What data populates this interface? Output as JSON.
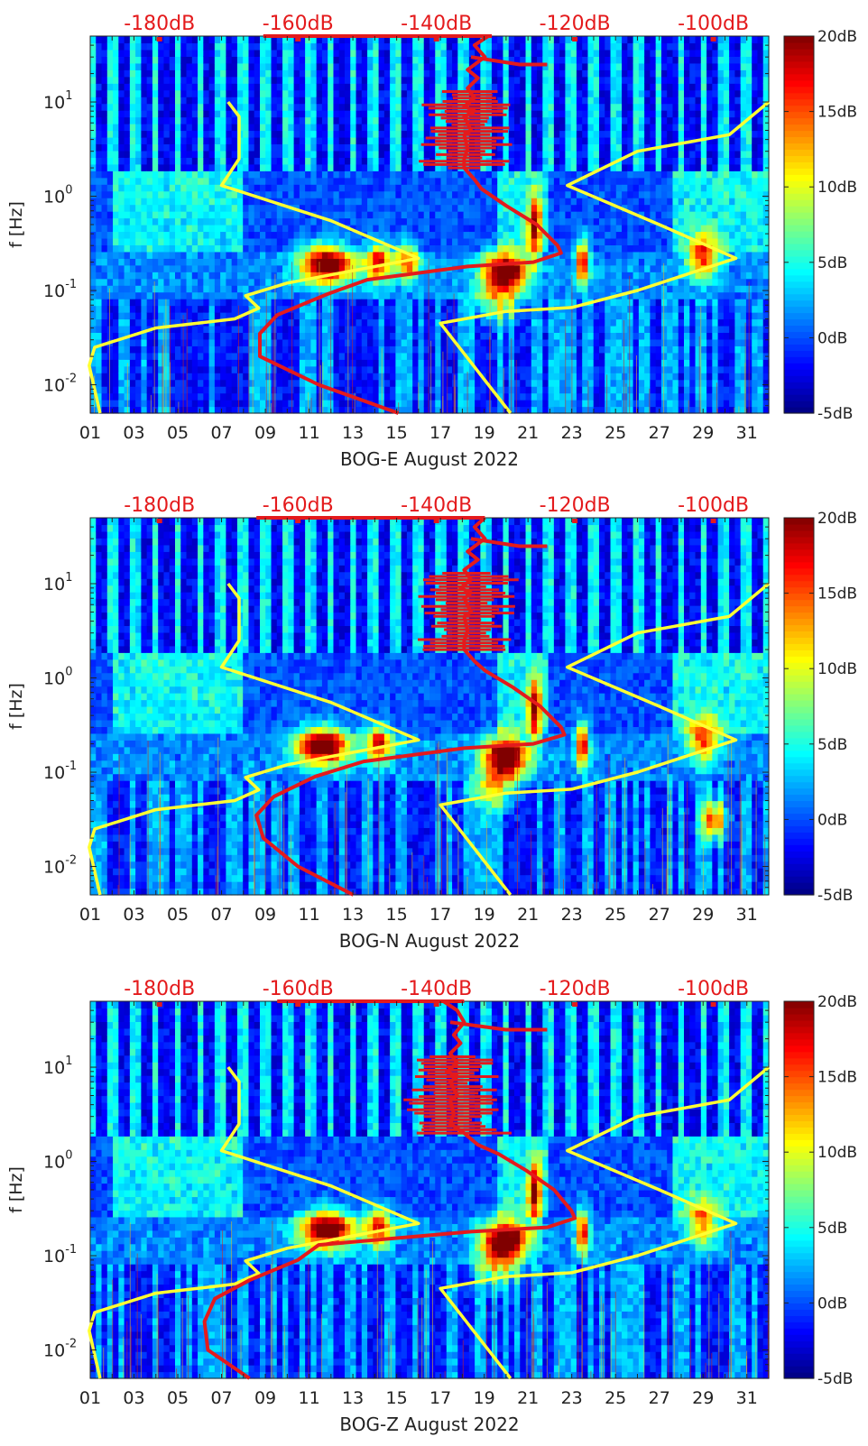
{
  "chart_data": [
    {
      "type": "heatmap",
      "title": "",
      "xlabel": "BOG-E August 2022",
      "ylabel": "f [Hz]",
      "x_tick_labels": [
        "01",
        "03",
        "05",
        "07",
        "09",
        "11",
        "13",
        "15",
        "17",
        "19",
        "21",
        "23",
        "25",
        "27",
        "29",
        "31"
      ],
      "xlim": [
        1,
        32
      ],
      "ylim": [
        0.005,
        50
      ],
      "y_scale": "log",
      "y_tick_labels": [
        {
          "value": 0.01,
          "base": "10",
          "exp": "-2"
        },
        {
          "value": 0.1,
          "base": "10",
          "exp": "-1"
        },
        {
          "value": 1,
          "base": "10",
          "exp": "0"
        },
        {
          "value": 10,
          "base": "10",
          "exp": "1"
        }
      ],
      "colorbar": {
        "range": [
          -5,
          20
        ],
        "unit": "dB",
        "ticks": [
          "-5dB",
          "0dB",
          "5dB",
          "10dB",
          "15dB",
          "20dB"
        ]
      },
      "top_axis": {
        "color": "#e41a1c",
        "range_db": [
          -190,
          -92
        ],
        "tick_values": [
          -180,
          -160,
          -140,
          -120,
          -100
        ],
        "tick_labels": [
          "-180dB",
          "-160dB",
          "-140dB",
          "-120dB",
          "-100dB"
        ]
      },
      "heatmap_features": [
        {
          "x": 11.8,
          "f": 0.19,
          "amp": 22,
          "wx": 1.2,
          "wf": 0.05
        },
        {
          "x": 14.2,
          "f": 0.2,
          "amp": 16,
          "wx": 0.6,
          "wf": 0.05
        },
        {
          "x": 15.5,
          "f": 0.2,
          "amp": 14,
          "wx": 0.5,
          "wf": 0.05
        },
        {
          "x": 20.0,
          "f": 0.16,
          "amp": 22,
          "wx": 1.0,
          "wf": 0.05
        },
        {
          "x": 21.3,
          "f": 0.48,
          "amp": 16,
          "wx": 0.3,
          "wf": 0.08
        },
        {
          "x": 23.5,
          "f": 0.2,
          "amp": 17,
          "wx": 0.3,
          "wf": 0.06
        },
        {
          "x": 29.0,
          "f": 0.22,
          "amp": 14,
          "wx": 0.7,
          "wf": 0.06
        },
        {
          "x": 19.6,
          "f": 0.08,
          "amp": 9,
          "wx": 1.0,
          "wf": 0.06
        }
      ],
      "series": [
        {
          "name": "yellow-noise-model-left",
          "color": "#ffff33",
          "axis": "bottom",
          "x": [
            7.3,
            7.8,
            7.8,
            7.0,
            12.0,
            16.0,
            10.0,
            8.1,
            8.7,
            7.6,
            4.0,
            1.2,
            0.95,
            1.45
          ],
          "f": [
            10,
            7,
            2.5,
            1.3,
            0.55,
            0.22,
            0.12,
            0.088,
            0.065,
            0.05,
            0.04,
            0.025,
            0.016,
            0.005
          ]
        },
        {
          "name": "yellow-noise-model-right",
          "color": "#ffff33",
          "axis": "bottom",
          "x": [
            32.0,
            30.2,
            26.0,
            22.8,
            27.0,
            30.5,
            26.0,
            23.0,
            20.0,
            17.0,
            20.2
          ],
          "f": [
            10,
            4.5,
            3.0,
            1.3,
            0.5,
            0.22,
            0.1,
            0.066,
            0.06,
            0.045,
            0.005
          ]
        },
        {
          "name": "red-psd-curve",
          "color": "#e41a1c",
          "axis": "top",
          "db": [
            -132.5,
            -134.5,
            -133.0,
            -135.5,
            -134.0,
            -135.5,
            -134.5,
            -136.0,
            -134.5,
            -136.0,
            -135.0,
            -136.0,
            -135.5,
            -136.0,
            -136.0,
            -134.5,
            -133.5,
            -130.0,
            -125.5,
            -122.5,
            -122.0,
            -126.0,
            -135.5,
            -150.0,
            -156.0,
            -163.0,
            -165.5,
            -165.5,
            -157.0,
            -145.5
          ],
          "f": [
            50,
            40,
            30,
            22,
            18,
            14,
            11,
            9,
            8,
            7,
            5,
            4.5,
            3.2,
            2.5,
            2.0,
            1.5,
            1.2,
            0.8,
            0.5,
            0.3,
            0.25,
            0.2,
            0.18,
            0.13,
            0.09,
            0.055,
            0.035,
            0.02,
            0.01,
            0.005
          ]
        },
        {
          "name": "red-psd-branch",
          "color": "#e41a1c",
          "axis": "top",
          "db": [
            -135,
            -128,
            -124
          ],
          "f": [
            30,
            25,
            25
          ]
        },
        {
          "name": "red-psd-top",
          "color": "#e41a1c",
          "axis": "top",
          "db": [
            -165,
            -132
          ],
          "f": [
            50,
            50
          ]
        }
      ]
    },
    {
      "type": "heatmap",
      "title": "",
      "xlabel": "BOG-N August 2022",
      "ylabel": "f [Hz]",
      "x_tick_labels": [
        "01",
        "03",
        "05",
        "07",
        "09",
        "11",
        "13",
        "15",
        "17",
        "19",
        "21",
        "23",
        "25",
        "27",
        "29",
        "31"
      ],
      "xlim": [
        1,
        32
      ],
      "ylim": [
        0.005,
        50
      ],
      "y_scale": "log",
      "y_tick_labels": [
        {
          "value": 0.01,
          "base": "10",
          "exp": "-2"
        },
        {
          "value": 0.1,
          "base": "10",
          "exp": "-1"
        },
        {
          "value": 1,
          "base": "10",
          "exp": "0"
        },
        {
          "value": 10,
          "base": "10",
          "exp": "1"
        }
      ],
      "colorbar": {
        "range": [
          -5,
          20
        ],
        "unit": "dB",
        "ticks": [
          "-5dB",
          "0dB",
          "5dB",
          "10dB",
          "15dB",
          "20dB"
        ]
      },
      "top_axis": {
        "color": "#e41a1c",
        "range_db": [
          -190,
          -92
        ],
        "tick_values": [
          -180,
          -160,
          -140,
          -120,
          -100
        ],
        "tick_labels": [
          "-180dB",
          "-160dB",
          "-140dB",
          "-120dB",
          "-100dB"
        ]
      },
      "heatmap_features": [
        {
          "x": 11.6,
          "f": 0.19,
          "amp": 22,
          "wx": 1.2,
          "wf": 0.05
        },
        {
          "x": 14.2,
          "f": 0.2,
          "amp": 16,
          "wx": 0.6,
          "wf": 0.05
        },
        {
          "x": 20.0,
          "f": 0.15,
          "amp": 22,
          "wx": 1.0,
          "wf": 0.05
        },
        {
          "x": 21.3,
          "f": 0.48,
          "amp": 16,
          "wx": 0.3,
          "wf": 0.08
        },
        {
          "x": 23.5,
          "f": 0.2,
          "amp": 17,
          "wx": 0.3,
          "wf": 0.06
        },
        {
          "x": 29.0,
          "f": 0.22,
          "amp": 14,
          "wx": 0.7,
          "wf": 0.06
        },
        {
          "x": 19.6,
          "f": 0.075,
          "amp": 10,
          "wx": 1.0,
          "wf": 0.06
        },
        {
          "x": 29.5,
          "f": 0.032,
          "amp": 14,
          "wx": 0.6,
          "wf": 0.05
        }
      ],
      "series": [
        {
          "name": "yellow-noise-model-left",
          "color": "#ffff33",
          "axis": "bottom",
          "x": [
            7.3,
            7.8,
            7.8,
            7.0,
            12.0,
            16.0,
            10.0,
            8.1,
            8.7,
            7.6,
            4.0,
            1.2,
            0.95,
            1.45
          ],
          "f": [
            10,
            7,
            2.5,
            1.3,
            0.55,
            0.22,
            0.12,
            0.088,
            0.065,
            0.05,
            0.04,
            0.025,
            0.016,
            0.005
          ]
        },
        {
          "name": "yellow-noise-model-right",
          "color": "#ffff33",
          "axis": "bottom",
          "x": [
            32.0,
            30.2,
            26.0,
            22.8,
            27.0,
            30.5,
            26.0,
            23.0,
            20.0,
            17.0,
            20.2
          ],
          "f": [
            10,
            4.5,
            3.0,
            1.3,
            0.5,
            0.22,
            0.1,
            0.066,
            0.06,
            0.045,
            0.005
          ]
        },
        {
          "name": "red-psd-curve",
          "color": "#e41a1c",
          "axis": "top",
          "db": [
            -133.0,
            -134.5,
            -133.0,
            -135.5,
            -134.0,
            -136.0,
            -135.0,
            -136.5,
            -135.0,
            -136.0,
            -135.0,
            -136.0,
            -135.5,
            -136.0,
            -136.0,
            -134.5,
            -133.0,
            -129.0,
            -125.0,
            -122.0,
            -121.5,
            -126.0,
            -136.0,
            -150.5,
            -157.5,
            -163.5,
            -166.0,
            -165.0,
            -160.0,
            -152.0
          ],
          "f": [
            50,
            40,
            30,
            22,
            18,
            14,
            11,
            9,
            8,
            7,
            5,
            4.5,
            3.2,
            2.5,
            2.0,
            1.5,
            1.2,
            0.8,
            0.5,
            0.3,
            0.25,
            0.2,
            0.18,
            0.13,
            0.09,
            0.055,
            0.035,
            0.02,
            0.01,
            0.005
          ]
        },
        {
          "name": "red-psd-branch",
          "color": "#e41a1c",
          "axis": "top",
          "db": [
            -135,
            -128,
            -124
          ],
          "f": [
            30,
            25,
            25
          ]
        },
        {
          "name": "red-psd-top",
          "color": "#e41a1c",
          "axis": "top",
          "db": [
            -166,
            -133
          ],
          "f": [
            50,
            50
          ]
        }
      ]
    },
    {
      "type": "heatmap",
      "title": "",
      "xlabel": "BOG-Z August 2022",
      "ylabel": "f [Hz]",
      "x_tick_labels": [
        "01",
        "03",
        "05",
        "07",
        "09",
        "11",
        "13",
        "15",
        "17",
        "19",
        "21",
        "23",
        "25",
        "27",
        "29",
        "31"
      ],
      "xlim": [
        1,
        32
      ],
      "ylim": [
        0.005,
        50
      ],
      "y_scale": "log",
      "y_tick_labels": [
        {
          "value": 0.01,
          "base": "10",
          "exp": "-2"
        },
        {
          "value": 0.1,
          "base": "10",
          "exp": "-1"
        },
        {
          "value": 1,
          "base": "10",
          "exp": "0"
        },
        {
          "value": 10,
          "base": "10",
          "exp": "1"
        }
      ],
      "colorbar": {
        "range": [
          -5,
          20
        ],
        "unit": "dB",
        "ticks": [
          "-5dB",
          "0dB",
          "5dB",
          "10dB",
          "15dB",
          "20dB"
        ]
      },
      "top_axis": {
        "color": "#e41a1c",
        "range_db": [
          -190,
          -92
        ],
        "tick_values": [
          -180,
          -160,
          -140,
          -120,
          -100
        ],
        "tick_labels": [
          "-180dB",
          "-160dB",
          "-140dB",
          "-120dB",
          "-100dB"
        ]
      },
      "heatmap_features": [
        {
          "x": 11.8,
          "f": 0.19,
          "amp": 22,
          "wx": 1.2,
          "wf": 0.05
        },
        {
          "x": 14.2,
          "f": 0.2,
          "amp": 16,
          "wx": 0.6,
          "wf": 0.05
        },
        {
          "x": 20.0,
          "f": 0.15,
          "amp": 22,
          "wx": 1.0,
          "wf": 0.05
        },
        {
          "x": 21.3,
          "f": 0.48,
          "amp": 16,
          "wx": 0.3,
          "wf": 0.08
        },
        {
          "x": 23.5,
          "f": 0.18,
          "amp": 16,
          "wx": 0.3,
          "wf": 0.06
        },
        {
          "x": 29.0,
          "f": 0.22,
          "amp": 12,
          "wx": 0.7,
          "wf": 0.06
        },
        {
          "x": 19.6,
          "f": 0.08,
          "amp": 9,
          "wx": 1.0,
          "wf": 0.06
        }
      ],
      "series": [
        {
          "name": "yellow-noise-model-left",
          "color": "#ffff33",
          "axis": "bottom",
          "x": [
            7.3,
            7.8,
            7.8,
            7.0,
            12.0,
            16.0,
            10.0,
            8.1,
            8.7,
            7.6,
            4.0,
            1.2,
            0.95,
            1.45
          ],
          "f": [
            10,
            7,
            2.5,
            1.3,
            0.55,
            0.22,
            0.12,
            0.088,
            0.065,
            0.05,
            0.04,
            0.025,
            0.016,
            0.005
          ]
        },
        {
          "name": "yellow-noise-model-right",
          "color": "#ffff33",
          "axis": "bottom",
          "x": [
            32.0,
            30.2,
            26.0,
            22.8,
            27.0,
            30.5,
            26.0,
            23.0,
            20.0,
            17.0,
            20.2
          ],
          "f": [
            10,
            4.5,
            3.0,
            1.3,
            0.5,
            0.22,
            0.1,
            0.066,
            0.06,
            0.045,
            0.005
          ]
        },
        {
          "name": "red-psd-curve",
          "color": "#e41a1c",
          "axis": "top",
          "db": [
            -139.0,
            -137.0,
            -136.0,
            -137.5,
            -136.5,
            -138.0,
            -137.0,
            -138.5,
            -137.0,
            -138.0,
            -137.0,
            -138.0,
            -137.5,
            -138.0,
            -136.0,
            -134.0,
            -131.0,
            -127.0,
            -123.0,
            -120.5,
            -120.0,
            -124.0,
            -135.0,
            -157.0,
            -160.0,
            -167.0,
            -172.0,
            -173.5,
            -173.0,
            -167.0
          ],
          "f": [
            50,
            40,
            30,
            22,
            18,
            14,
            11,
            9,
            8,
            7,
            5,
            4.5,
            3.2,
            2.5,
            2.0,
            1.5,
            1.2,
            0.8,
            0.5,
            0.3,
            0.25,
            0.2,
            0.18,
            0.13,
            0.09,
            0.055,
            0.035,
            0.02,
            0.01,
            0.005
          ]
        },
        {
          "name": "red-psd-branch",
          "color": "#e41a1c",
          "axis": "top",
          "db": [
            -138,
            -130,
            -124
          ],
          "f": [
            30,
            25,
            25
          ]
        },
        {
          "name": "red-psd-top",
          "color": "#e41a1c",
          "axis": "top",
          "db": [
            -163,
            -136
          ],
          "f": [
            50,
            50
          ]
        }
      ]
    }
  ]
}
